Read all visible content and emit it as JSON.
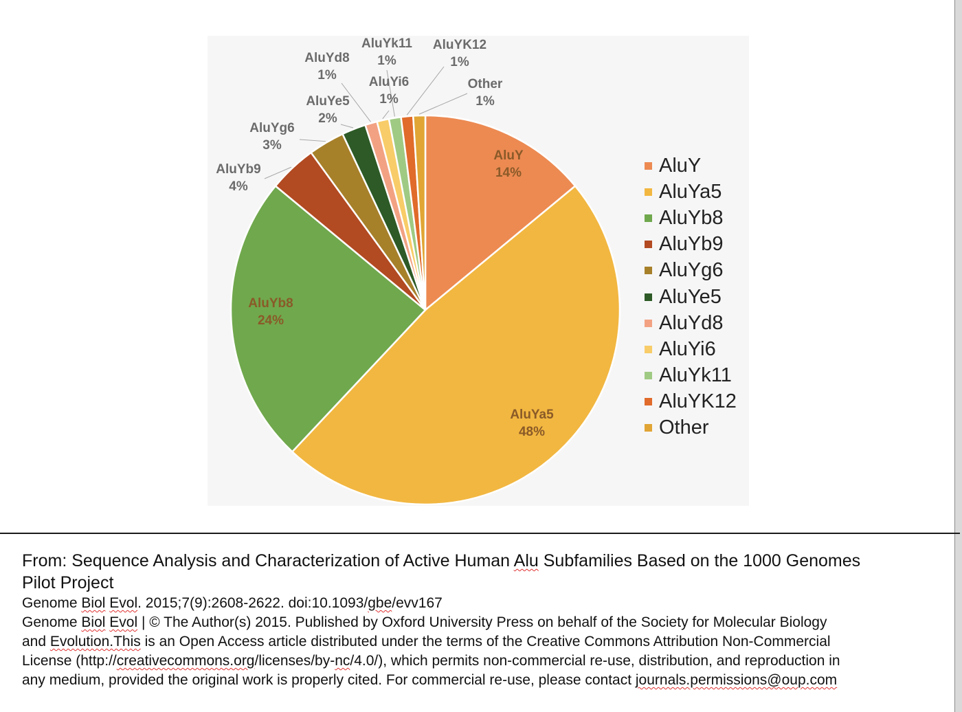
{
  "chart_data": {
    "type": "pie",
    "slices": [
      {
        "name": "AluY",
        "value": 14,
        "label": "14%",
        "color": "#ec8a52"
      },
      {
        "name": "AluYa5",
        "value": 48,
        "label": "48%",
        "color": "#f2b741"
      },
      {
        "name": "AluYb8",
        "value": 24,
        "label": "24%",
        "color": "#70a84d"
      },
      {
        "name": "AluYb9",
        "value": 4,
        "label": "4%",
        "color": "#b24a22"
      },
      {
        "name": "AluYg6",
        "value": 3,
        "label": "3%",
        "color": "#a7802a"
      },
      {
        "name": "AluYe5",
        "value": 2,
        "label": "2%",
        "color": "#2d5a26"
      },
      {
        "name": "AluYd8",
        "value": 1,
        "label": "1%",
        "color": "#f2a283"
      },
      {
        "name": "AluYi6",
        "value": 1,
        "label": "1%",
        "color": "#f8cc68"
      },
      {
        "name": "AluYk11",
        "value": 1,
        "label": "1%",
        "color": "#9fca83"
      },
      {
        "name": "AluYK12",
        "value": 1,
        "label": "1%",
        "color": "#e06b2a"
      },
      {
        "name": "Other",
        "value": 1,
        "label": "1%",
        "color": "#e0a534"
      }
    ],
    "legend_position": "right",
    "title": ""
  },
  "caption": {
    "from_prefix": "From: Sequence Analysis and Characterization of Active Human ",
    "from_alu": "Alu",
    "from_suffix": " Subfamilies Based on the 1000 Genomes",
    "from_line2": "Pilot Project",
    "cite_prefix": "Genome ",
    "cite_biol": "Biol",
    "cite_space": " ",
    "cite_evol": "Evol",
    "cite_mid": ". 2015;7(9):2608-2622. doi:10.1093/",
    "cite_gbe": "gbe",
    "cite_end": "/evv167",
    "lic1_prefix": "Genome ",
    "lic1_biol": "Biol",
    "lic1_space": " ",
    "lic1_evol": "Evol",
    "lic1_rest": " | © The Author(s) 2015. Published by Oxford University Press on behalf of the Society for Molecular Biology",
    "lic2_prefix": "and ",
    "lic2_evothis": "Evolution.This",
    "lic2_rest": " is an Open Access article distributed under the terms of the Creative Commons Attribution Non-Commercial",
    "lic3_prefix": "License (http://",
    "lic3_cc": "creativecommons.org",
    "lic3_mid": "/licenses/by-",
    "lic3_nc": "nc",
    "lic3_rest": "/4.0/), which permits non-commercial re-use, distribution, and reproduction in",
    "lic4_prefix": "any medium, provided the original work is properly cited. For commercial re-use, please contact ",
    "lic4_email": "journals.permissions@oup.com"
  }
}
